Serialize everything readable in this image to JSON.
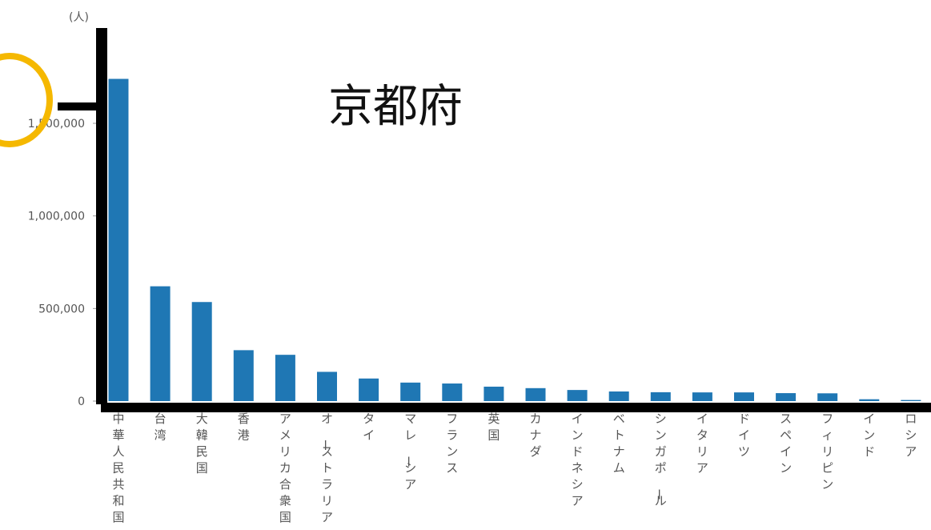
{
  "chart_data": {
    "type": "bar",
    "title": "京都府",
    "y_unit": "(人)",
    "categories": [
      "中華人民共和国",
      "台湾",
      "大韓民国",
      "香港",
      "アメリカ合衆国",
      "オーストラリア",
      "タイ",
      "マレーシア",
      "フランス",
      "英国",
      "カナダ",
      "インドネシア",
      "ベトナム",
      "シンガポール",
      "イタリア",
      "ドイツ",
      "スペイン",
      "フィリピン",
      "インド",
      "ロシア"
    ],
    "values": [
      1740000,
      620000,
      535000,
      275000,
      250000,
      158000,
      122000,
      100000,
      95000,
      78000,
      70000,
      60000,
      52000,
      48000,
      47000,
      47000,
      43000,
      42000,
      10000,
      6000
    ],
    "y_ticks": [
      0,
      500000,
      1000000,
      1500000
    ],
    "y_tick_labels": [
      "0",
      "500,000",
      "1,000,000",
      "1,500,000"
    ],
    "ylim": [
      0,
      1980000
    ],
    "bar_color": "#1f77b4",
    "highlight_color": "#f5b800",
    "grid": false,
    "legend": "none"
  }
}
